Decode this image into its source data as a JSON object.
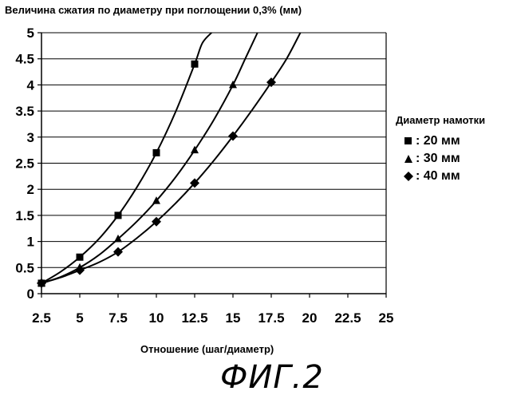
{
  "chart_data": {
    "type": "line",
    "title": "Величина сжатия по диаметру при поглощении 0,3% (мм)",
    "xlabel": "Отношение (шаг/диаметр)",
    "ylabel": "",
    "xlim": [
      2.5,
      25
    ],
    "ylim": [
      0,
      5
    ],
    "x_ticks": [
      "2.5",
      "5",
      "7.5",
      "10",
      "12.5",
      "15",
      "17.5",
      "20",
      "22.5",
      "25"
    ],
    "y_ticks": [
      "0",
      "0.5",
      "1",
      "1.5",
      "2",
      "2.5",
      "3",
      "3.5",
      "4",
      "4.5",
      "5"
    ],
    "grid": "horizontal",
    "legend_title": "Диаметр намотки",
    "legend_position": "right",
    "series": [
      {
        "name": "20 мм",
        "label": ": 20 мм",
        "marker": "square",
        "x": [
          2.5,
          5,
          7.5,
          10,
          12.5
        ],
        "y": [
          0.2,
          0.7,
          1.5,
          2.7,
          4.4
        ],
        "curve_x": [
          2.5,
          3.75,
          5,
          6.25,
          7.5,
          8.75,
          10,
          11.25,
          12.5,
          13.0,
          13.6
        ],
        "curve_y": [
          0.2,
          0.42,
          0.7,
          1.05,
          1.5,
          2.05,
          2.7,
          3.48,
          4.4,
          4.8,
          5.0
        ]
      },
      {
        "name": "30 мм",
        "label": ": 30 мм",
        "marker": "triangle",
        "x": [
          2.5,
          5,
          7.5,
          10,
          12.5,
          15
        ],
        "y": [
          0.2,
          0.5,
          1.05,
          1.78,
          2.75,
          4.0
        ],
        "curve_x": [
          2.5,
          3.75,
          5,
          6.25,
          7.5,
          8.75,
          10,
          11.25,
          12.5,
          13.75,
          15,
          15.8,
          16.6
        ],
        "curve_y": [
          0.2,
          0.32,
          0.5,
          0.74,
          1.05,
          1.39,
          1.78,
          2.23,
          2.75,
          3.33,
          4.0,
          4.5,
          5.0
        ]
      },
      {
        "name": "40 мм",
        "label": ": 40 мм",
        "marker": "diamond",
        "x": [
          2.5,
          5,
          7.5,
          10,
          12.5,
          15,
          17.5
        ],
        "y": [
          0.2,
          0.45,
          0.8,
          1.38,
          2.12,
          3.02,
          4.05
        ],
        "curve_x": [
          2.5,
          3.75,
          5,
          6.25,
          7.5,
          8.75,
          10,
          11.25,
          12.5,
          13.75,
          15,
          16.25,
          17.5,
          18.5,
          19.4
        ],
        "curve_y": [
          0.2,
          0.31,
          0.45,
          0.6,
          0.8,
          1.07,
          1.38,
          1.73,
          2.12,
          2.55,
          3.02,
          3.52,
          4.05,
          4.5,
          5.0
        ]
      }
    ]
  },
  "caption": "ФИГ.2"
}
